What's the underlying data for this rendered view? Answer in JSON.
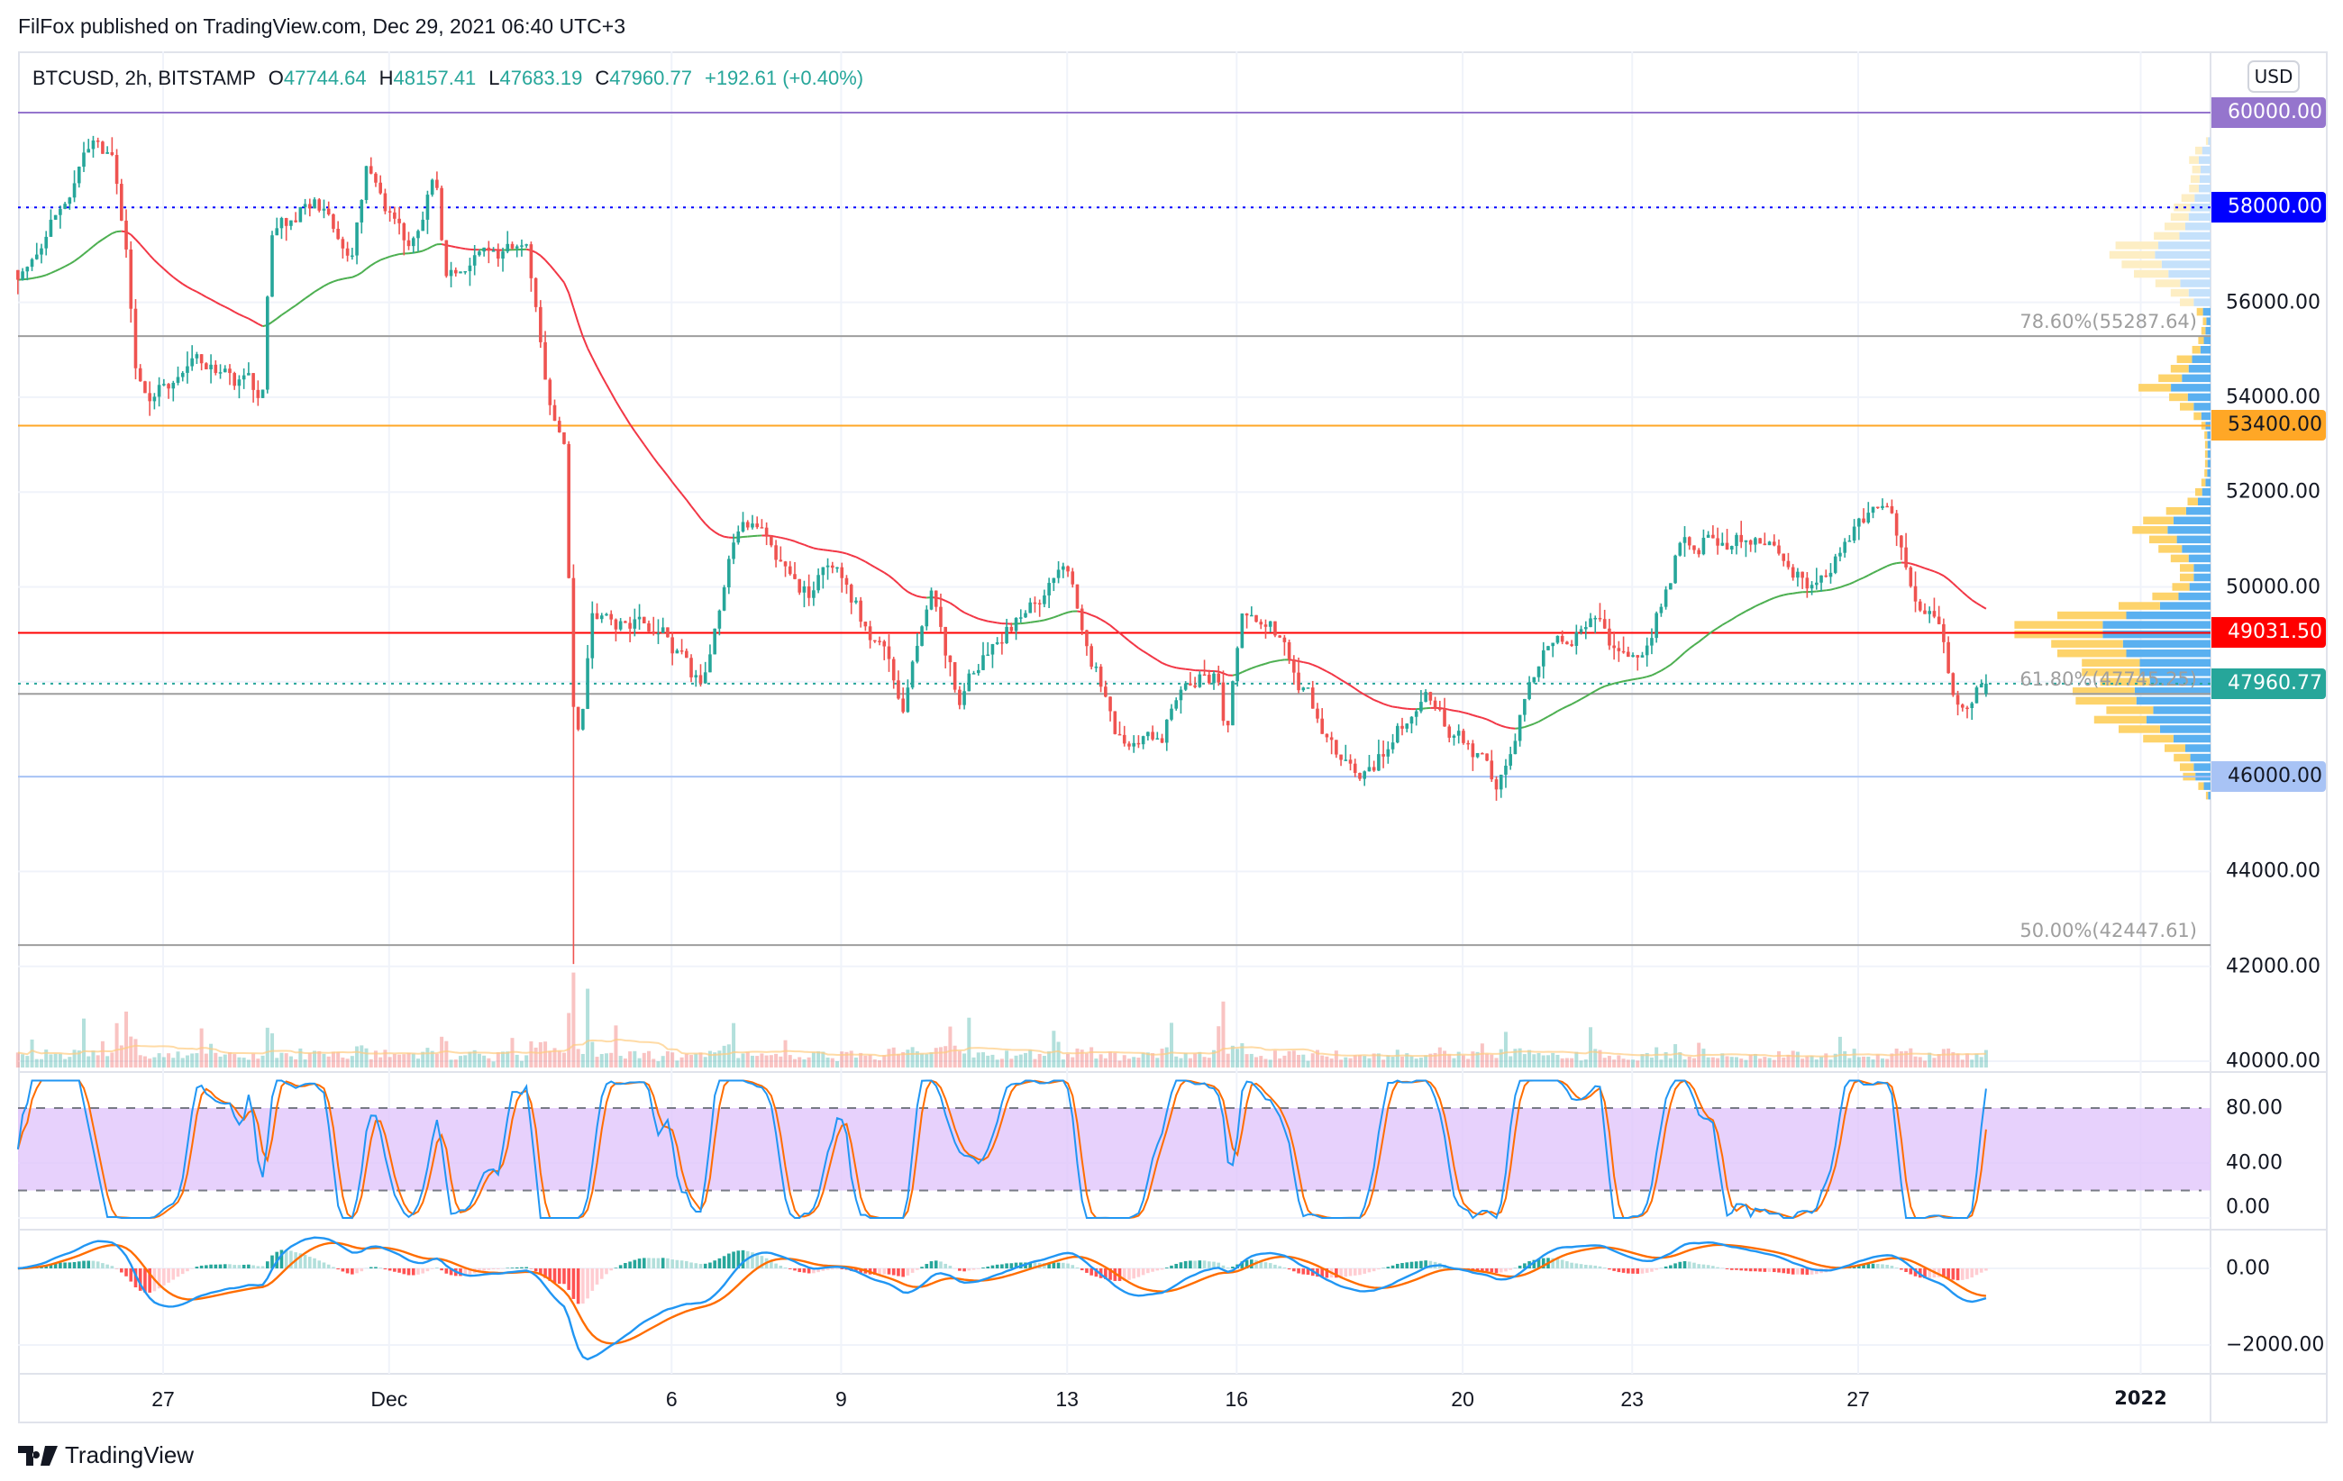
{
  "header": {
    "published": "FilFox published on TradingView.com, Dec 29, 2021 06:40 UTC+3"
  },
  "legend": {
    "symbol": "BTCUSD, 2h, BITSTAMP",
    "o_label": "O",
    "o": "47744.64",
    "h_label": "H",
    "h": "48157.41",
    "l_label": "L",
    "l": "47683.19",
    "c_label": "C",
    "c": "47960.77",
    "change": "+192.61 (+0.40%)"
  },
  "currency": "USD",
  "footer": {
    "brand": "TradingView"
  },
  "colors": {
    "up": "#26a69a",
    "down": "#ef5350",
    "ma_up": "#4caf50",
    "ma_down": "#f23645",
    "stoch_k": "#2196f3",
    "stoch_d": "#ff6d00",
    "stoch_band": "#e1c6fb"
  },
  "chart_data": {
    "type": "candlestick",
    "title": "BTCUSD, 2h, BITSTAMP",
    "bar_interval_hours": 2,
    "day_origin": "Nov 27",
    "start_day": -2.57,
    "end_day": 32.25,
    "last_bar": {
      "open": 47744.64,
      "high": 48157.41,
      "low": 47683.19,
      "close": 47960.77
    },
    "price_path": [
      [
        -2.57,
        56680
      ],
      [
        -2.0,
        57600
      ],
      [
        -1.24,
        59200
      ],
      [
        -0.9,
        58900
      ],
      [
        -0.63,
        56700
      ],
      [
        -0.5,
        54500
      ],
      [
        -0.3,
        54000
      ],
      [
        0.57,
        54800
      ],
      [
        1.77,
        54000
      ],
      [
        1.9,
        57300
      ],
      [
        2.7,
        58260
      ],
      [
        3.35,
        56800
      ],
      [
        3.6,
        58600
      ],
      [
        4.3,
        57300
      ],
      [
        4.82,
        58600
      ],
      [
        5.0,
        56700
      ],
      [
        5.8,
        57000
      ],
      [
        6.42,
        57000
      ],
      [
        6.6,
        55700
      ],
      [
        6.85,
        53800
      ],
      [
        7.1,
        52900
      ],
      [
        7.27,
        47180
      ],
      [
        7.4,
        46900
      ],
      [
        7.6,
        49400
      ],
      [
        8.8,
        49080
      ],
      [
        9.5,
        47800
      ],
      [
        10.1,
        51000
      ],
      [
        10.6,
        51450
      ],
      [
        11.0,
        50350
      ],
      [
        11.5,
        49700
      ],
      [
        11.8,
        50500
      ],
      [
        12.8,
        48450
      ],
      [
        13.1,
        47650
      ],
      [
        13.6,
        49700
      ],
      [
        14.1,
        47500
      ],
      [
        14.6,
        48760
      ],
      [
        16.0,
        50350
      ],
      [
        16.4,
        48760
      ],
      [
        16.9,
        46900
      ],
      [
        17.7,
        46900
      ],
      [
        18.0,
        48130
      ],
      [
        18.7,
        48130
      ],
      [
        18.8,
        46900
      ],
      [
        19.1,
        49240
      ],
      [
        19.6,
        49080
      ],
      [
        20.2,
        47800
      ],
      [
        20.8,
        46550
      ],
      [
        21.2,
        45900
      ],
      [
        21.8,
        46900
      ],
      [
        22.4,
        47500
      ],
      [
        22.9,
        46900
      ],
      [
        23.6,
        45900
      ],
      [
        24.1,
        47800
      ],
      [
        24.4,
        48760
      ],
      [
        25.2,
        49240
      ],
      [
        26.2,
        48300
      ],
      [
        26.6,
        50000
      ],
      [
        26.9,
        51140
      ],
      [
        27.8,
        50980
      ],
      [
        28.7,
        50660
      ],
      [
        29.2,
        49870
      ],
      [
        29.8,
        51140
      ],
      [
        30.5,
        51600
      ],
      [
        30.7,
        50980
      ],
      [
        31.0,
        49400
      ],
      [
        31.4,
        49080
      ],
      [
        31.7,
        47650
      ],
      [
        32.25,
        47960
      ]
    ],
    "spikes": [
      {
        "day": 7.27,
        "low": 42050
      }
    ],
    "price_axis": {
      "min": 40000,
      "max": 60000,
      "labels": [
        {
          "value": 56000,
          "label": "56000.00"
        },
        {
          "value": 54000,
          "label": "54000.00"
        },
        {
          "value": 52000,
          "label": "52000.00"
        },
        {
          "value": 50000,
          "label": "50000.00"
        },
        {
          "value": 44000,
          "label": "44000.00"
        },
        {
          "value": 42000,
          "label": "42000.00"
        },
        {
          "value": 40000,
          "label": "40000.00"
        }
      ]
    },
    "price_tags": [
      {
        "value": 60000,
        "label": "60000.00",
        "bg": "#9575cd",
        "fg": "#ffffff",
        "line": "solid"
      },
      {
        "value": 58000,
        "label": "58000.00",
        "bg": "#0000ff",
        "fg": "#ffffff",
        "line": "dotted"
      },
      {
        "value": 53400,
        "label": "53400.00",
        "bg": "#ffa726",
        "fg": "#131722",
        "line": "solid"
      },
      {
        "value": 49031.5,
        "label": "49031.50",
        "bg": "#ff0000",
        "fg": "#ffffff",
        "line": "solid"
      },
      {
        "value": 47960.77,
        "label": "47960.77",
        "bg": "#26a69a",
        "fg": "#ffffff",
        "line": "dotted"
      },
      {
        "value": 46000,
        "label": "46000.00",
        "bg": "#a8c3f5",
        "fg": "#131722",
        "line": "solid"
      }
    ],
    "fib_levels": [
      {
        "value": 55287.64,
        "label": "78.60%(55287.64)"
      },
      {
        "value": 47745.25,
        "label": "61.80%(47745.25)"
      },
      {
        "value": 42447.61,
        "label": "50.00%(42447.61)"
      }
    ],
    "time_axis": [
      {
        "day": 0,
        "label": "27"
      },
      {
        "day": 4,
        "label": "Dec"
      },
      {
        "day": 9,
        "label": "6"
      },
      {
        "day": 12,
        "label": "9"
      },
      {
        "day": 16,
        "label": "13"
      },
      {
        "day": 19,
        "label": "16"
      },
      {
        "day": 23,
        "label": "20"
      },
      {
        "day": 26,
        "label": "23"
      },
      {
        "day": 30,
        "label": "27"
      },
      {
        "day": 35,
        "label": "2022",
        "bold": true
      }
    ],
    "stoch_rsi": {
      "upper": 80,
      "lower": 20,
      "axis_labels": [
        {
          "value": 80,
          "label": "80.00"
        },
        {
          "value": 40,
          "label": "40.00"
        },
        {
          "value": 0,
          "label": "0.00"
        }
      ]
    },
    "macd": {
      "axis_labels": [
        {
          "value": 0,
          "label": "0.00"
        },
        {
          "value": -2000,
          "label": "−2000.00"
        }
      ]
    },
    "volume_profile": {
      "bin_size": 200,
      "up_share": 0.55,
      "light_above": 55900,
      "rows": [
        [
          59400,
          15
        ],
        [
          59200,
          50
        ],
        [
          59000,
          70
        ],
        [
          58800,
          60
        ],
        [
          58600,
          65
        ],
        [
          58400,
          70
        ],
        [
          58200,
          95
        ],
        [
          58000,
          120
        ],
        [
          57800,
          130
        ],
        [
          57600,
          150
        ],
        [
          57400,
          185
        ],
        [
          57200,
          310
        ],
        [
          57000,
          330
        ],
        [
          56800,
          290
        ],
        [
          56600,
          250
        ],
        [
          56400,
          180
        ],
        [
          56200,
          130
        ],
        [
          56000,
          100
        ],
        [
          55800,
          45
        ],
        [
          55600,
          25
        ],
        [
          55400,
          30
        ],
        [
          55200,
          40
        ],
        [
          55000,
          60
        ],
        [
          54800,
          110
        ],
        [
          54600,
          130
        ],
        [
          54400,
          170
        ],
        [
          54200,
          235
        ],
        [
          54000,
          135
        ],
        [
          53800,
          100
        ],
        [
          53600,
          55
        ],
        [
          53400,
          30
        ],
        [
          53200,
          20
        ],
        [
          53000,
          18
        ],
        [
          52800,
          18
        ],
        [
          52600,
          18
        ],
        [
          52400,
          20
        ],
        [
          52200,
          30
        ],
        [
          52000,
          50
        ],
        [
          51800,
          75
        ],
        [
          51600,
          145
        ],
        [
          51400,
          220
        ],
        [
          51200,
          255
        ],
        [
          51000,
          200
        ],
        [
          50800,
          170
        ],
        [
          50600,
          130
        ],
        [
          50400,
          100
        ],
        [
          50200,
          100
        ],
        [
          50000,
          125
        ],
        [
          49800,
          190
        ],
        [
          49600,
          300
        ],
        [
          49400,
          500
        ],
        [
          49200,
          640
        ],
        [
          49000,
          640
        ],
        [
          48800,
          520
        ],
        [
          48600,
          500
        ],
        [
          48400,
          420
        ],
        [
          48200,
          420
        ],
        [
          48000,
          360
        ],
        [
          47800,
          450
        ],
        [
          47600,
          440
        ],
        [
          47400,
          340
        ],
        [
          47200,
          380
        ],
        [
          47000,
          300
        ],
        [
          46800,
          220
        ],
        [
          46600,
          150
        ],
        [
          46400,
          120
        ],
        [
          46200,
          100
        ],
        [
          46000,
          90
        ],
        [
          45800,
          40
        ],
        [
          45600,
          15
        ]
      ]
    }
  }
}
